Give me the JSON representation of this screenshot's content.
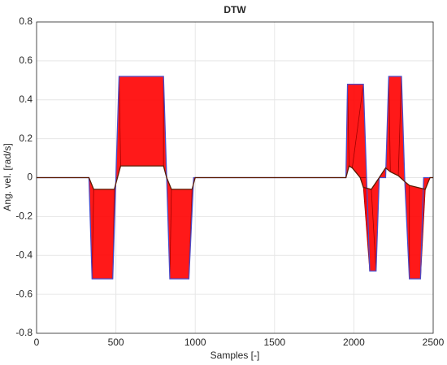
{
  "chart_data": {
    "type": "line",
    "title": "DTW",
    "x_label": "Samples [-]",
    "y_label": "Ang. vel. [rad/s]",
    "xlim": [
      0,
      2500
    ],
    "xticks": [
      0,
      500,
      1000,
      1500,
      2000,
      2500
    ],
    "ylim": [
      -0.8,
      0.8
    ],
    "yticks": [
      -0.8,
      -0.6,
      -0.4,
      -0.2,
      0,
      0.2,
      0.4,
      0.6,
      0.8
    ],
    "grid": true,
    "warp_color": "#ff0000",
    "series": [
      {
        "color": "#4b4bc8",
        "x": [
          0,
          330,
          350,
          480,
          500,
          520,
          800,
          820,
          840,
          960,
          990,
          1950,
          1960,
          2060,
          2080,
          2100,
          2140,
          2160,
          2200,
          2220,
          2300,
          2320,
          2350,
          2420,
          2440,
          2500
        ],
        "values": [
          0,
          0,
          -0.52,
          -0.52,
          0,
          0.52,
          0.52,
          0,
          -0.52,
          -0.52,
          0,
          0,
          0.48,
          0.48,
          0,
          -0.48,
          -0.48,
          0,
          0,
          0.52,
          0.52,
          0,
          -0.52,
          -0.52,
          0,
          0
        ]
      },
      {
        "color": "#5a1a00",
        "x": [
          0,
          330,
          360,
          490,
          510,
          530,
          800,
          820,
          850,
          980,
          1000,
          1950,
          1970,
          1990,
          2040,
          2060,
          2110,
          2160,
          2200,
          2230,
          2280,
          2320,
          2350,
          2450,
          2480,
          2500
        ],
        "values": [
          0,
          0,
          -0.06,
          -0.06,
          0,
          0.06,
          0.06,
          0,
          -0.06,
          -0.06,
          0,
          0,
          0.06,
          0.05,
          0,
          -0.05,
          -0.06,
          0,
          0.05,
          0.03,
          0.01,
          -0.02,
          -0.04,
          -0.06,
          0,
          0
        ]
      }
    ]
  }
}
